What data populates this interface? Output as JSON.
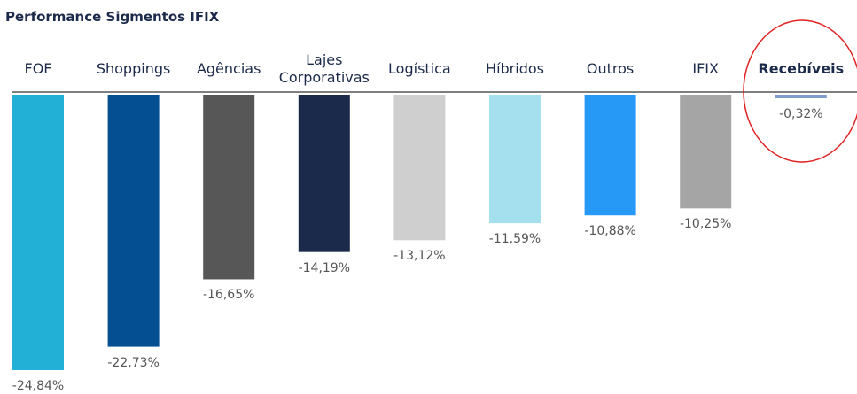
{
  "chart_data": {
    "type": "bar",
    "title": "Performance Sigmentos IFIX",
    "categories": [
      "FOF",
      "Shoppings",
      "Agências",
      "Lajes Corporativas",
      "Logística",
      "Híbridos",
      "Outros",
      "IFIX",
      "Recebíveis"
    ],
    "values": [
      -24.84,
      -22.73,
      -16.65,
      -14.19,
      -13.12,
      -11.59,
      -10.88,
      -10.25,
      -0.32
    ],
    "value_labels": [
      "-24,84%",
      "-22,73%",
      "-16,65%",
      "-14,19%",
      "-13,12%",
      "-11,59%",
      "-10,88%",
      "-10,25%",
      "-0,32%"
    ],
    "colors": [
      "#22b0d6",
      "#034f92",
      "#575757",
      "#1b2a4a",
      "#d0cfd0",
      "#a5e0ee",
      "#2698f5",
      "#a5a5a5",
      "#7f9ccc"
    ],
    "highlighted": "Recebíveis"
  }
}
